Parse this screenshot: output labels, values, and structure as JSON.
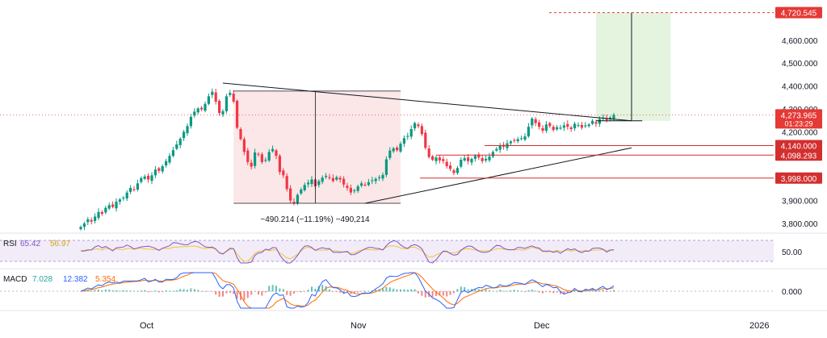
{
  "chart_data": {
    "type": "candlestick",
    "x_labels": [
      "Oct",
      "Nov",
      "Dec",
      "2026"
    ],
    "price_axis": {
      "ticks": [
        "3,800.000",
        "3,900.000",
        "4,000.000",
        "4,100.000",
        "4,200.000",
        "4,300.000",
        "4,400.000",
        "4,500.000",
        "4,600.000"
      ],
      "ylim": [
        3760,
        4760
      ]
    },
    "price_badges": [
      {
        "label": "4,720.545",
        "value": 4720.545,
        "color": "#e53935"
      },
      {
        "label": "4,273.965",
        "sublabel": "01:23:29",
        "value": 4273.965,
        "color": "#e53935"
      },
      {
        "label": "4,140.000",
        "value": 4140,
        "color": "#d32f2f"
      },
      {
        "label": "4,098.293",
        "value": 4098.293,
        "color": "#d32f2f"
      },
      {
        "label": "3,998.000",
        "value": 3998,
        "color": "#d32f2f"
      }
    ],
    "measurement": {
      "label": "−490.214 (−11.19%) −490,214",
      "from": 4378,
      "to": 3888
    },
    "target_projection": {
      "from": 4248,
      "to": 4720.545
    },
    "triangle": {
      "upper_line": [
        {
          "t": 32,
          "p": 4375
        },
        {
          "t": 155,
          "p": 4248
        }
      ],
      "lower_line": [
        {
          "t": 80,
          "p": 3888
        },
        {
          "t": 155,
          "p": 4130
        }
      ]
    },
    "candles_close": [
      3785,
      3800,
      3818,
      3808,
      3830,
      3850,
      3842,
      3868,
      3880,
      3872,
      3895,
      3905,
      3912,
      3935,
      3955,
      3948,
      3975,
      3998,
      4005,
      3992,
      4010,
      4035,
      4030,
      4050,
      4072,
      4095,
      4120,
      4145,
      4170,
      4200,
      4225,
      4265,
      4288,
      4302,
      4298,
      4322,
      4355,
      4375,
      4332,
      4282,
      4290,
      4355,
      4370,
      4332,
      4218,
      4168,
      4112,
      4068,
      4048,
      4110,
      4102,
      4068,
      4078,
      4112,
      4125,
      4095,
      4025,
      4010,
      3950,
      3900,
      3888,
      3925,
      3948,
      3968,
      3978,
      3992,
      3962,
      3985,
      4000,
      4008,
      3998,
      3985,
      4002,
      3992,
      3970,
      3955,
      3935,
      3945,
      3962,
      3975,
      3968,
      3980,
      3988,
      3995,
      4002,
      4012,
      4080,
      4118,
      4128,
      4120,
      4148,
      4172,
      4182,
      4212,
      4238,
      4225,
      4190,
      4130,
      4090,
      4078,
      4088,
      4075,
      4072,
      4050,
      4038,
      4020,
      4042,
      4078,
      4085,
      4072,
      4082,
      4095,
      4088,
      4072,
      4082,
      4092,
      4112,
      4125,
      4140,
      4135,
      4150,
      4158,
      4162,
      4168,
      4172,
      4180,
      4222,
      4258,
      4238,
      4222,
      4205,
      4232,
      4225,
      4208,
      4220,
      4218,
      4228,
      4222,
      4212,
      4235,
      4230,
      4218,
      4228,
      4232,
      4248,
      4235,
      4255,
      4262,
      4252,
      4262,
      4273.965
    ],
    "rsi": {
      "label": "RSI",
      "value": "65.42",
      "value2": "56.97",
      "level": "50.00",
      "color": "#7e57c2",
      "ma_color": "#f5c431"
    },
    "macd": {
      "label": "MACD",
      "v1": "7.028",
      "v2": "12.382",
      "v3": "5.354",
      "zero": "0.000",
      "c1": "#26a69a",
      "c2": "#2962ff",
      "c3": "#ff6d00"
    }
  }
}
